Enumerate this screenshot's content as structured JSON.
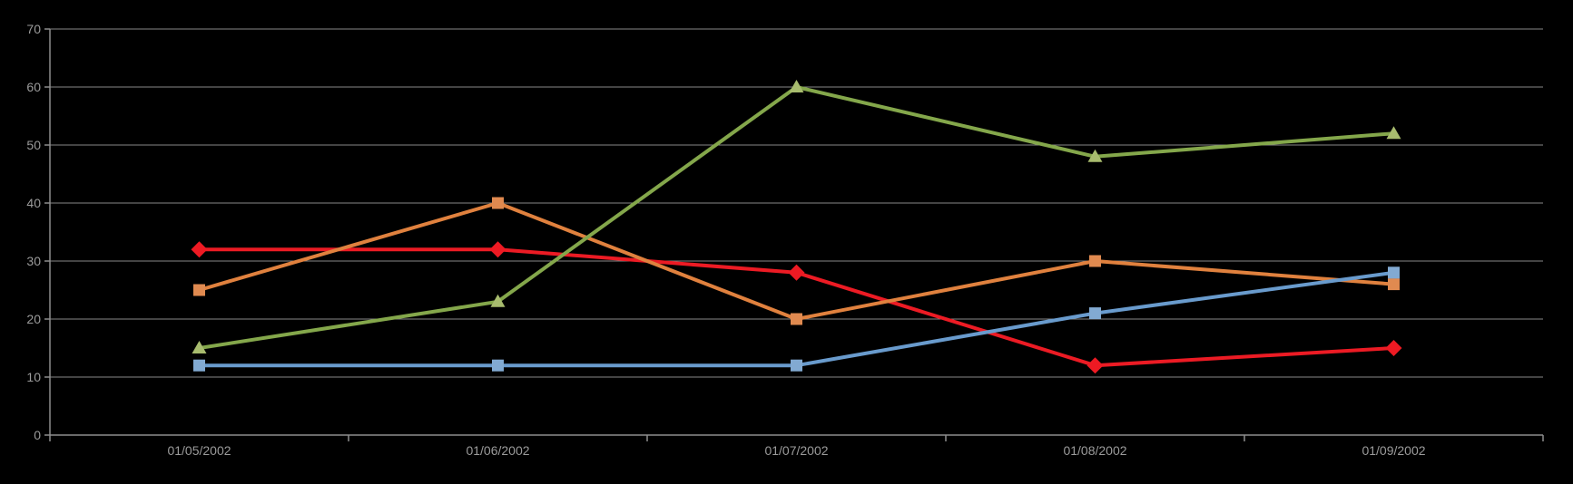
{
  "page": {
    "background": "#000000"
  },
  "chart_data": {
    "type": "line",
    "title": "",
    "xlabel": "",
    "ylabel": "",
    "categories": [
      "01/05/2002",
      "01/06/2002",
      "01/07/2002",
      "01/08/2002",
      "01/09/2002"
    ],
    "series": [
      {
        "name": "red-diamond-series",
        "marker": "diamond",
        "color": "#EC1B24",
        "marker_color": "#EE1A23",
        "values": [
          32,
          32,
          28,
          12,
          15
        ]
      },
      {
        "name": "orange-square-series",
        "marker": "square",
        "color": "#E0813E",
        "marker_color": "#E08A50",
        "values": [
          25,
          40,
          20,
          30,
          26
        ]
      },
      {
        "name": "blue-square-series",
        "marker": "square",
        "color": "#699BCD",
        "marker_color": "#82AAD2",
        "values": [
          12,
          12,
          12,
          21,
          28
        ]
      },
      {
        "name": "green-triangle-series",
        "marker": "triangle",
        "color": "#84A74B",
        "marker_color": "#A8BC6E",
        "values": [
          15,
          23,
          60,
          48,
          52
        ]
      }
    ],
    "ylim": [
      0,
      70
    ],
    "y_ticks": [
      0,
      10,
      20,
      30,
      40,
      50,
      60,
      70
    ],
    "grid": true,
    "legend": "none",
    "colors": {
      "background": "#000000",
      "grid": "#878787",
      "axis": "#8E8E8E",
      "tick_label": "#9B9B9B"
    }
  }
}
